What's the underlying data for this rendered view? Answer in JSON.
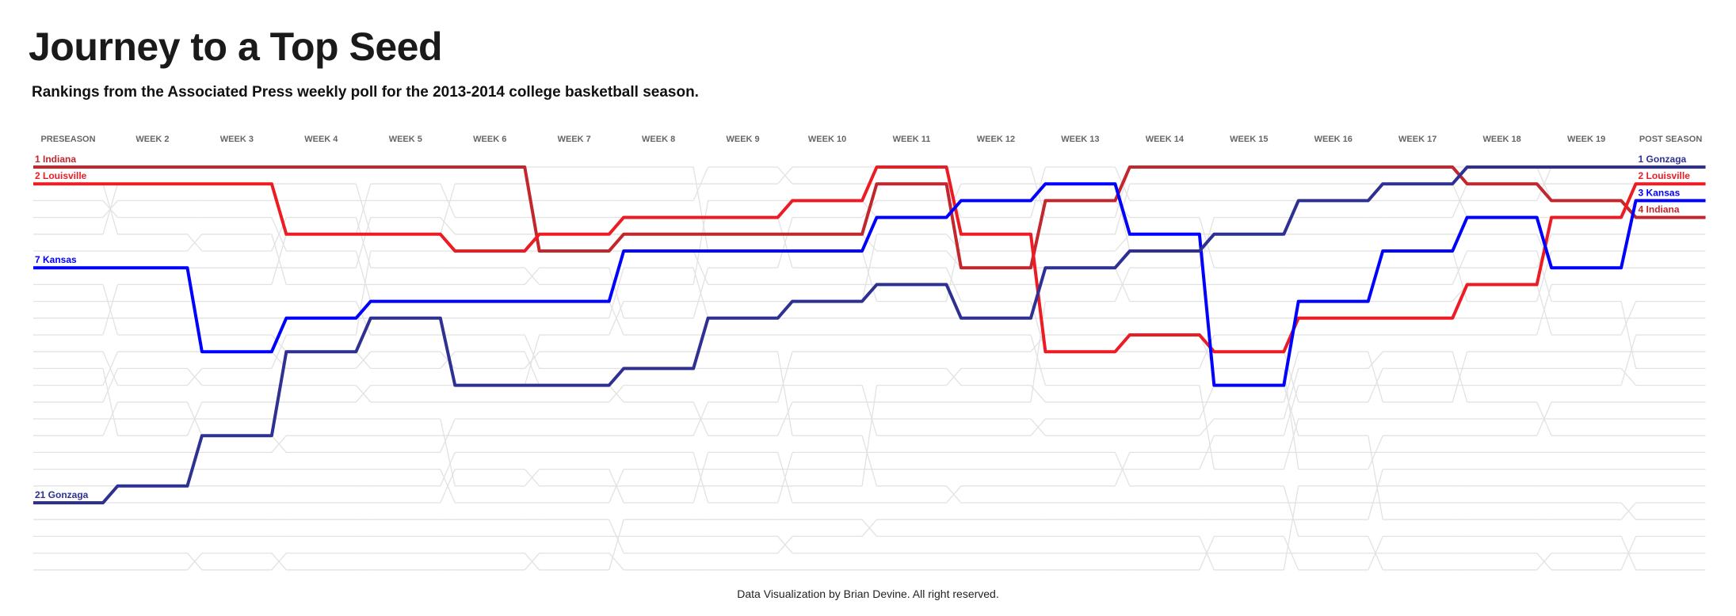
{
  "title": "Journey to a Top Seed",
  "subtitle": "Rankings from the Associated Press weekly poll for the 2013-2014 college basketball season.",
  "footer": "Data Visualization by Brian Devine. All right reserved.",
  "chart_data": {
    "type": "bump",
    "categories": [
      "PRESEASON",
      "WEEK 2",
      "WEEK 3",
      "WEEK 4",
      "WEEK 5",
      "WEEK 6",
      "WEEK 7",
      "WEEK 8",
      "WEEK 9",
      "WEEK 10",
      "WEEK 11",
      "WEEK 12",
      "WEEK 13",
      "WEEK 14",
      "WEEK 15",
      "WEEK 16",
      "WEEK 17",
      "WEEK 18",
      "WEEK 19",
      "POST SEASON"
    ],
    "y_axis": {
      "quantity": "rank",
      "range": [
        1,
        25
      ],
      "inverted": true
    },
    "series": [
      {
        "name": "Indiana",
        "color": "#c1272d",
        "values": [
          1,
          1,
          1,
          1,
          1,
          1,
          6,
          5,
          5,
          5,
          2,
          7,
          3,
          1,
          1,
          1,
          1,
          2,
          3,
          4
        ]
      },
      {
        "name": "Louisville",
        "color": "#ed1c24",
        "values": [
          2,
          2,
          2,
          5,
          5,
          6,
          5,
          4,
          4,
          3,
          1,
          5,
          12,
          11,
          12,
          10,
          10,
          8,
          4,
          2
        ]
      },
      {
        "name": "Kansas",
        "color": "#0000ff",
        "values": [
          7,
          7,
          12,
          10,
          9,
          9,
          9,
          6,
          6,
          6,
          4,
          3,
          2,
          5,
          14,
          9,
          6,
          4,
          7,
          3
        ]
      },
      {
        "name": "Gonzaga",
        "color": "#2e3192",
        "values": [
          21,
          20,
          17,
          12,
          10,
          14,
          14,
          13,
          10,
          9,
          8,
          10,
          7,
          6,
          5,
          3,
          2,
          1,
          1,
          1
        ]
      }
    ],
    "background_lines_color": "#e2e2e2"
  }
}
